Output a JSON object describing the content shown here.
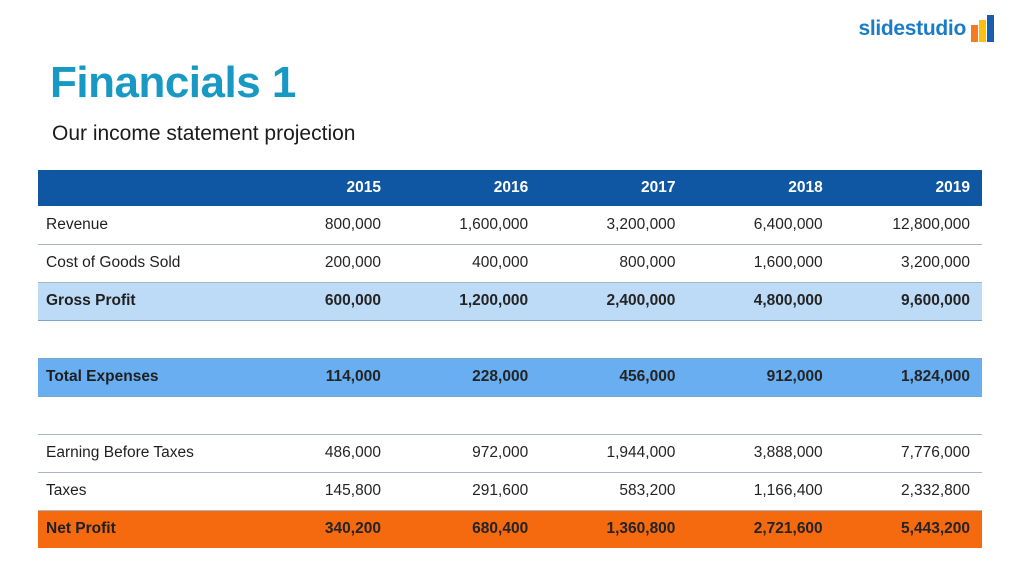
{
  "logo": {
    "text": "slidestudio",
    "mark_bars": [
      "orange-bar",
      "yellow-bar",
      "navy-bar"
    ]
  },
  "title": "Financials 1",
  "subtitle": "Our income statement projection",
  "table": {
    "years": [
      "2015",
      "2016",
      "2017",
      "2018",
      "2019"
    ],
    "rows": [
      {
        "label": "Revenue",
        "style": "plain",
        "values": [
          "800,000",
          "1,600,000",
          "3,200,000",
          "6,400,000",
          "12,800,000"
        ]
      },
      {
        "label": "Cost of Goods Sold",
        "style": "plain",
        "values": [
          "200,000",
          "400,000",
          "800,000",
          "1,600,000",
          "3,200,000"
        ]
      },
      {
        "label": "Gross Profit",
        "style": "highlight-light",
        "values": [
          "600,000",
          "1,200,000",
          "2,400,000",
          "4,800,000",
          "9,600,000"
        ]
      },
      {
        "label": "",
        "style": "spacer",
        "values": []
      },
      {
        "label": "Total Expenses",
        "style": "highlight-sky",
        "values": [
          "114,000",
          "228,000",
          "456,000",
          "912,000",
          "1,824,000"
        ]
      },
      {
        "label": "",
        "style": "spacer",
        "values": []
      },
      {
        "label": "Earning Before Taxes",
        "style": "plain",
        "values": [
          "486,000",
          "972,000",
          "1,944,000",
          "3,888,000",
          "7,776,000"
        ],
        "block_start": true
      },
      {
        "label": "Taxes",
        "style": "plain",
        "values": [
          "145,800",
          "291,600",
          "583,200",
          "1,166,400",
          "2,332,800"
        ]
      },
      {
        "label": "Net Profit",
        "style": "total",
        "values": [
          "340,200",
          "680,400",
          "1,360,800",
          "2,721,600",
          "5,443,200"
        ]
      }
    ]
  },
  "colors": {
    "header_bg": "#0F57A3",
    "light_blue": "#BDDBF7",
    "sky_blue": "#68AEF0",
    "orange": "#F5690F",
    "title_teal": "#1799C4",
    "logo_blue": "#1A7CC7",
    "bar_orange": "#F47B20",
    "bar_yellow": "#FDC010",
    "bar_navy": "#1A5DAD",
    "hairline": "#AAB6C6",
    "hairline_blue": "#7FA3CB"
  }
}
